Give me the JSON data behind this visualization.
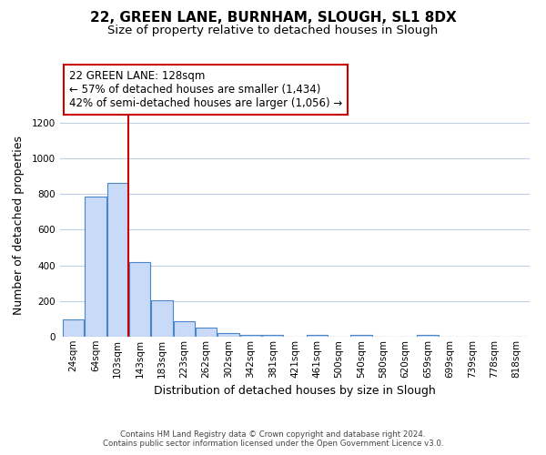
{
  "title": "22, GREEN LANE, BURNHAM, SLOUGH, SL1 8DX",
  "subtitle": "Size of property relative to detached houses in Slough",
  "xlabel": "Distribution of detached houses by size in Slough",
  "ylabel": "Number of detached properties",
  "footer_lines": [
    "Contains HM Land Registry data © Crown copyright and database right 2024.",
    "Contains public sector information licensed under the Open Government Licence v3.0."
  ],
  "bin_labels": [
    "24sqm",
    "64sqm",
    "103sqm",
    "143sqm",
    "183sqm",
    "223sqm",
    "262sqm",
    "302sqm",
    "342sqm",
    "381sqm",
    "421sqm",
    "461sqm",
    "500sqm",
    "540sqm",
    "580sqm",
    "620sqm",
    "659sqm",
    "699sqm",
    "739sqm",
    "778sqm",
    "818sqm"
  ],
  "bar_values": [
    95,
    785,
    862,
    420,
    205,
    85,
    52,
    22,
    10,
    8,
    0,
    12,
    0,
    10,
    0,
    0,
    12,
    0,
    0,
    0,
    0
  ],
  "bar_color": "#c9daf8",
  "bar_edge_color": "#4a86c8",
  "annotation_title": "22 GREEN LANE: 128sqm",
  "annotation_line1": "← 57% of detached houses are smaller (1,434)",
  "annotation_line2": "42% of semi-detached houses are larger (1,056) →",
  "annotation_box_color": "#ffffff",
  "annotation_box_edge": "#cc0000",
  "ylim": [
    0,
    1250
  ],
  "yticks": [
    0,
    200,
    400,
    600,
    800,
    1000,
    1200
  ],
  "background_color": "#ffffff",
  "grid_color": "#c0cfe8",
  "title_fontsize": 11,
  "subtitle_fontsize": 9.5,
  "xlabel_fontsize": 9,
  "ylabel_fontsize": 9,
  "tick_fontsize": 7.5,
  "annotation_fontsize": 8.5,
  "footer_fontsize": 6.2
}
